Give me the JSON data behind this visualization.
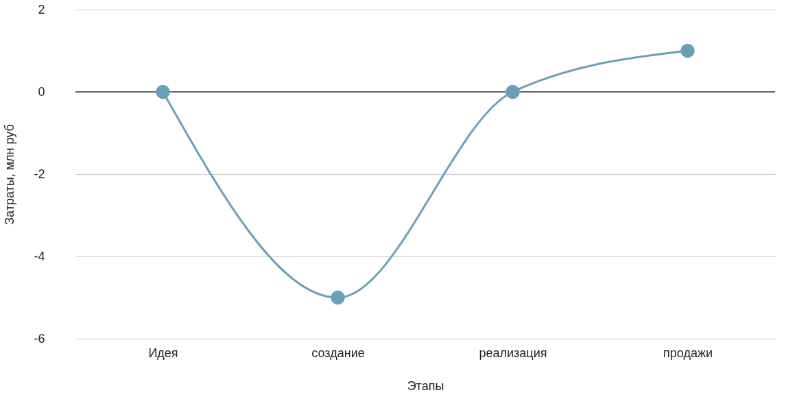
{
  "chart_data": {
    "type": "line",
    "xlabel": "Этапы",
    "ylabel": "Затраты, млн руб",
    "categories": [
      "Идея",
      "создание",
      "реализация",
      "продажи"
    ],
    "series": [
      {
        "color": "#6a9fb7",
        "values": [
          0,
          -5,
          0,
          1
        ]
      }
    ],
    "ylim": [
      -6,
      2
    ],
    "yticks": [
      -6,
      -4,
      -2,
      0,
      2
    ],
    "grid": "y",
    "marker": "circle",
    "line_style": "solid",
    "ref_lines": [
      {
        "axis": "y",
        "value": 0,
        "color": "#333333"
      }
    ]
  }
}
